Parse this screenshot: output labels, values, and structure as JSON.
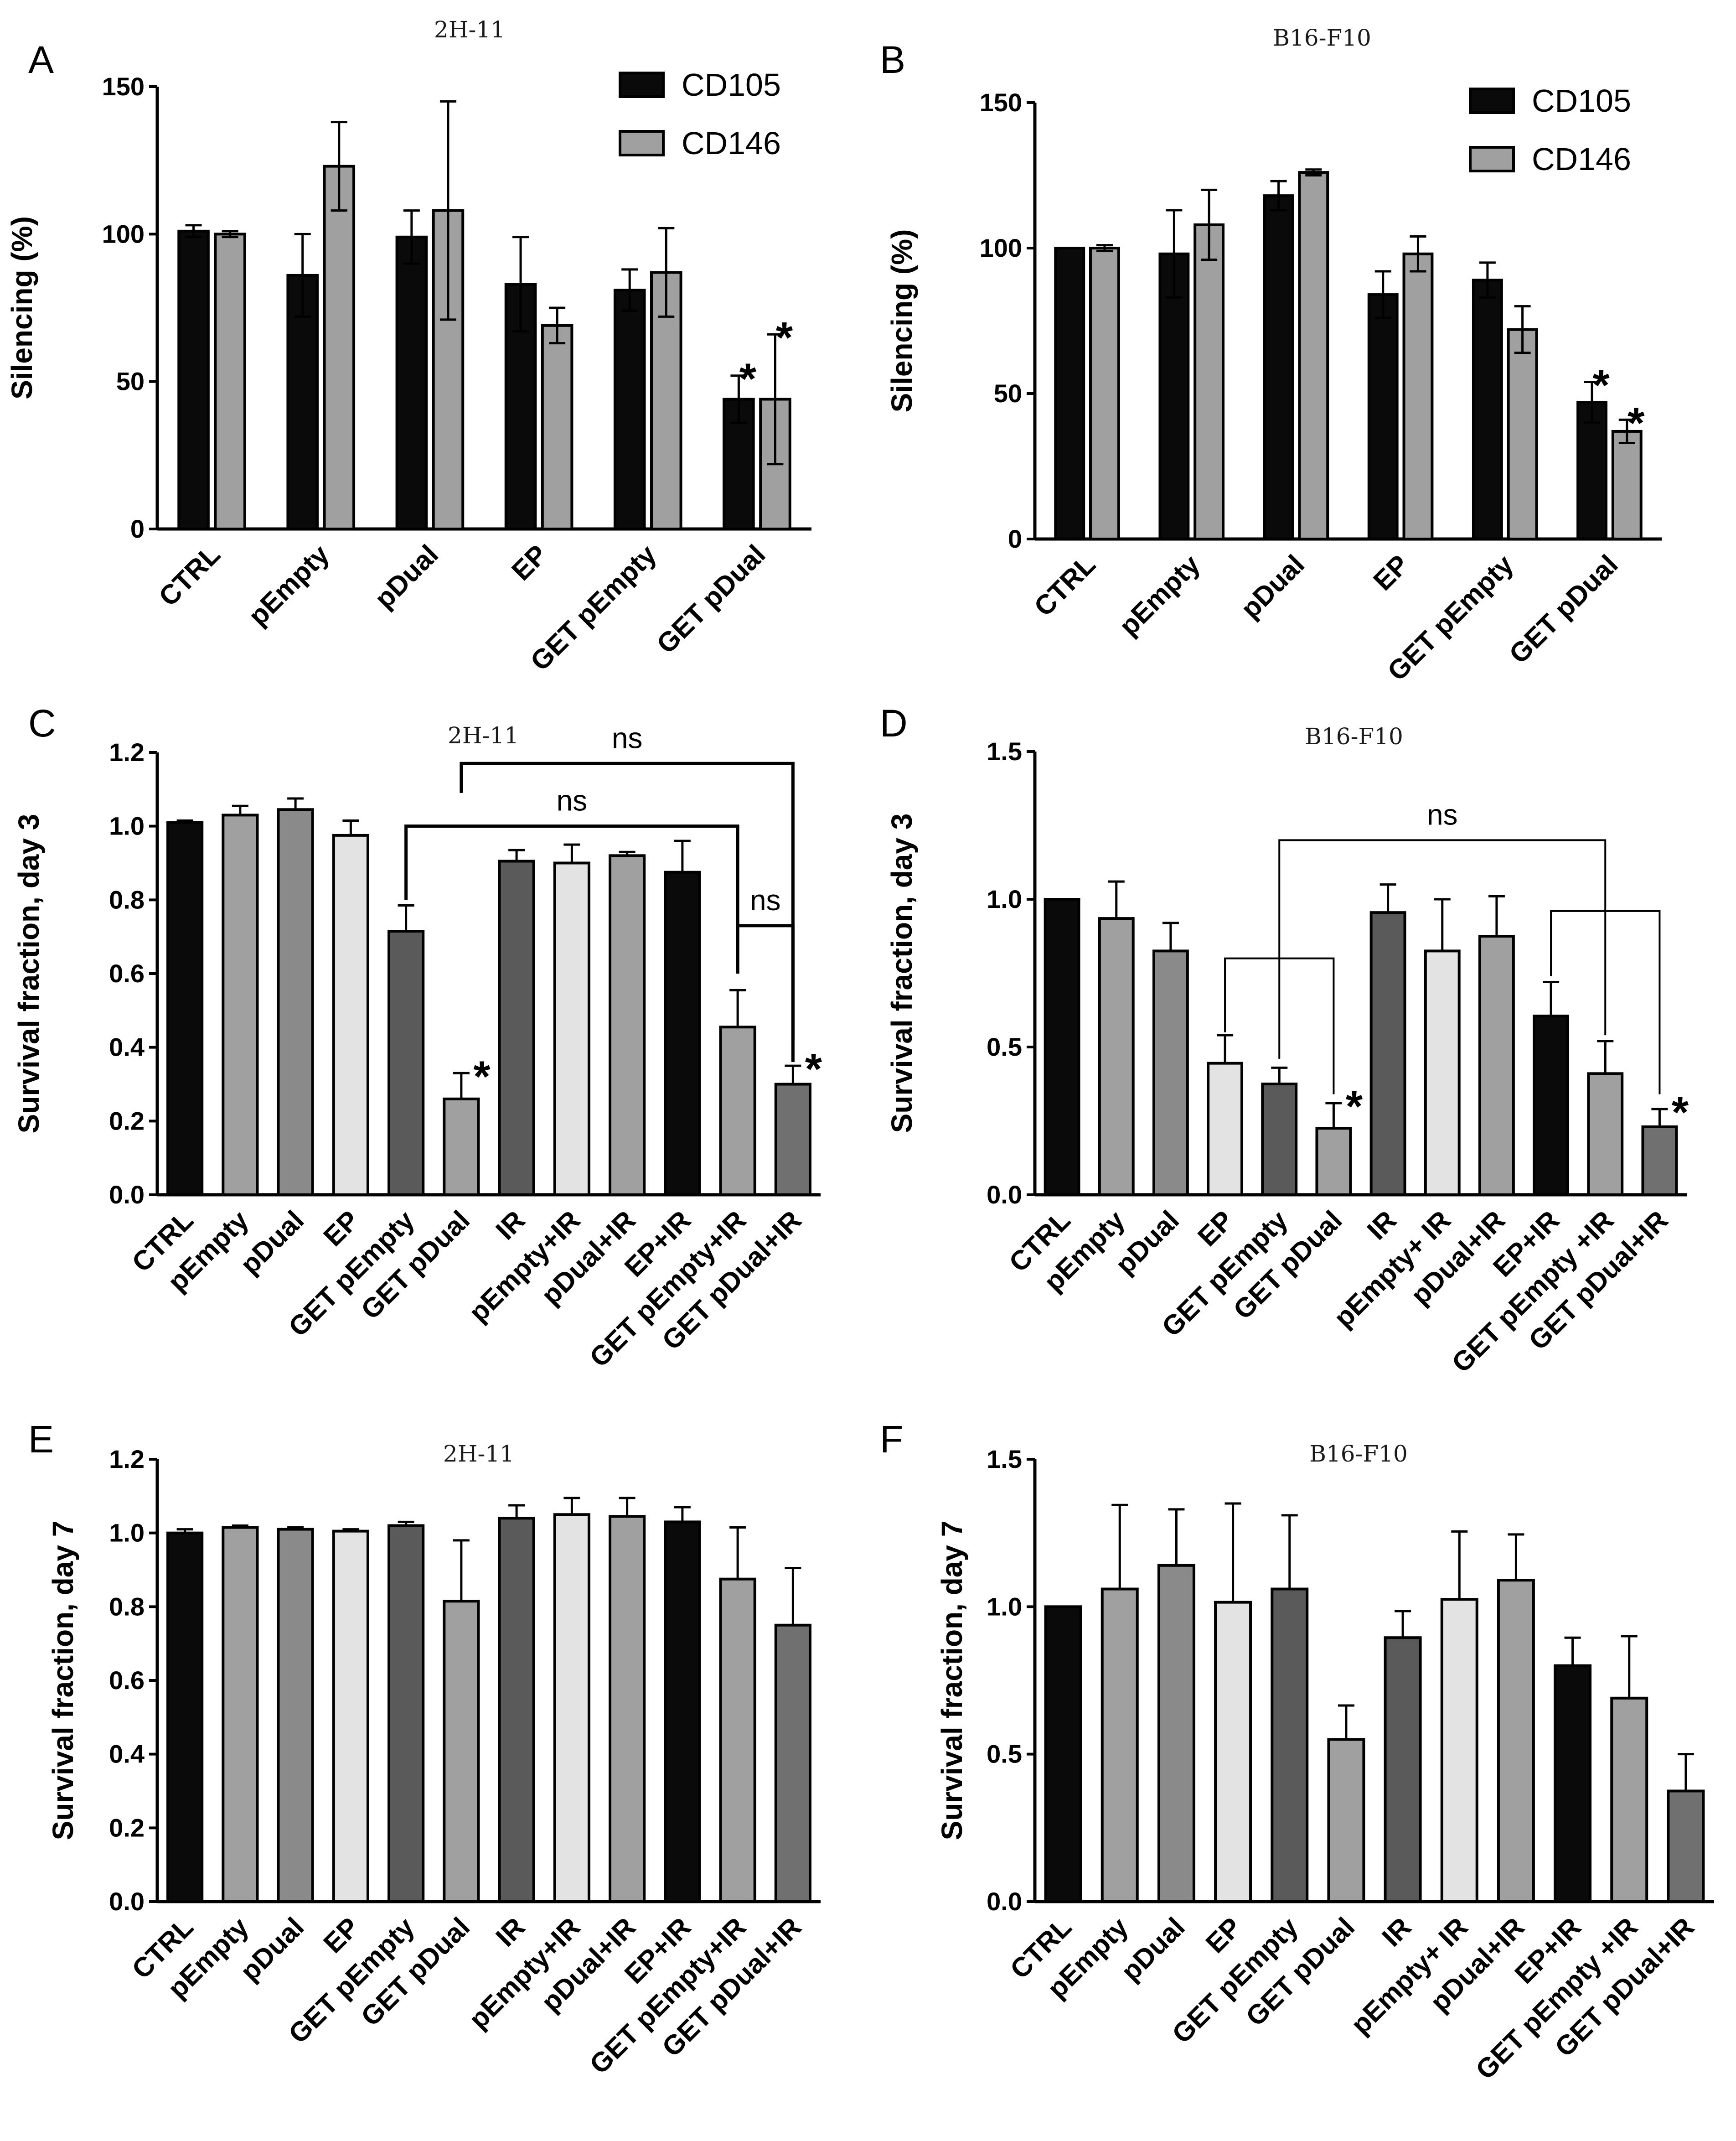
{
  "chart_data": [
    {
      "panel": "A",
      "title": "2H-11",
      "type": "bar",
      "categories": [
        "CTRL",
        "pEmpty",
        "pDual",
        "EP",
        "GET pEmpty",
        "GET pDual"
      ],
      "series": [
        {
          "name": "CD105",
          "color": "#0a0a0a",
          "values": [
            101,
            86,
            99,
            83,
            81,
            44
          ],
          "errors": [
            2,
            14,
            9,
            16,
            7,
            8
          ]
        },
        {
          "name": "CD146",
          "color": "#a0a0a0",
          "values": [
            100,
            123,
            108,
            69,
            87,
            44
          ],
          "errors": [
            1,
            15,
            37,
            6,
            15,
            22
          ]
        }
      ],
      "stars": [
        {
          "category": 5,
          "series": 0,
          "label": "*"
        },
        {
          "category": 5,
          "series": 1,
          "label": "*"
        }
      ],
      "ylabel": "Silencing (%)",
      "ylim": [
        0,
        150
      ],
      "yticks": [
        "0",
        "50",
        "100",
        "150"
      ]
    },
    {
      "panel": "B",
      "title": "B16-F10",
      "type": "bar",
      "categories": [
        "CTRL",
        "pEmpty",
        "pDual",
        "EP",
        "GET pEmpty",
        "GET pDual"
      ],
      "series": [
        {
          "name": "CD105",
          "color": "#0a0a0a",
          "values": [
            100,
            98,
            118,
            84,
            89,
            47
          ],
          "errors": [
            0,
            15,
            5,
            8,
            6,
            7
          ]
        },
        {
          "name": "CD146",
          "color": "#a0a0a0",
          "values": [
            100,
            108,
            126,
            98,
            72,
            37
          ],
          "errors": [
            1,
            12,
            1,
            6,
            8,
            4
          ]
        }
      ],
      "stars": [
        {
          "category": 5,
          "series": 0,
          "label": "*"
        },
        {
          "category": 5,
          "series": 1,
          "label": "*"
        }
      ],
      "ylabel": "Silencing (%)",
      "ylim": [
        0,
        150
      ],
      "yticks": [
        "0",
        "50",
        "100",
        "150"
      ]
    },
    {
      "panel": "C",
      "title": "2H-11",
      "type": "bar",
      "categories": [
        "CTRL",
        "pEmpty",
        "pDual",
        "EP",
        "GET pEmpty",
        "GET pDual",
        "IR",
        "pEmpty+IR",
        "pDual+IR",
        "EP+IR",
        "GET pEmpty+IR",
        "GET pDual+IR"
      ],
      "values": [
        1.01,
        1.03,
        1.045,
        0.975,
        0.715,
        0.26,
        0.905,
        0.9,
        0.92,
        0.875,
        0.455,
        0.3
      ],
      "errors": [
        0.005,
        0.025,
        0.03,
        0.04,
        0.07,
        0.07,
        0.03,
        0.05,
        0.01,
        0.085,
        0.1,
        0.05
      ],
      "colors": [
        "#0a0a0a",
        "#a0a0a0",
        "#8a8a8a",
        "#e3e3e3",
        "#5a5a5a",
        "#a0a0a0",
        "#5a5a5a",
        "#e3e3e3",
        "#a0a0a0",
        "#0a0a0a",
        "#a0a0a0",
        "#707070"
      ],
      "stars": [
        {
          "category": 5,
          "label": "*"
        },
        {
          "category": 11,
          "label": "*"
        }
      ],
      "brackets": [
        {
          "from": 5,
          "to": 11,
          "level": 1.17,
          "drop_left": 1.09,
          "drop_right": 0.42,
          "label": "ns"
        },
        {
          "from": 4,
          "to": 10,
          "level": 1.0,
          "drop_left": 0.8,
          "drop_right": 0.6,
          "label": "ns"
        },
        {
          "from": 10,
          "to": 11,
          "level": 0.73,
          "drop_left": 0.6,
          "drop_right": 0.36,
          "label": "ns"
        }
      ],
      "ylabel": "Survival fraction, day 3",
      "ylim": [
        0,
        1.2
      ],
      "yticks": [
        "0.0",
        "0.2",
        "0.4",
        "0.6",
        "0.8",
        "1.0",
        "1.2"
      ]
    },
    {
      "panel": "D",
      "title": "B16-F10",
      "type": "bar",
      "categories": [
        "CTRL",
        "pEmpty",
        "pDual",
        "EP",
        "GET pEmpty",
        "GET pDual",
        "IR",
        "pEmpty+ IR",
        "pDual+IR",
        "EP+IR",
        "GET pEmpty +IR",
        "GET pDual+IR"
      ],
      "values": [
        1.0,
        0.935,
        0.825,
        0.445,
        0.375,
        0.225,
        0.955,
        0.825,
        0.875,
        0.605,
        0.41,
        0.23
      ],
      "errors": [
        0,
        0.125,
        0.095,
        0.095,
        0.055,
        0.085,
        0.095,
        0.175,
        0.135,
        0.115,
        0.11,
        0.06
      ],
      "colors": [
        "#0a0a0a",
        "#a0a0a0",
        "#8a8a8a",
        "#e3e3e3",
        "#5a5a5a",
        "#a0a0a0",
        "#5a5a5a",
        "#e3e3e3",
        "#a0a0a0",
        "#0a0a0a",
        "#a0a0a0",
        "#707070"
      ],
      "stars": [
        {
          "category": 5,
          "label": "*"
        },
        {
          "category": 11,
          "label": "*"
        }
      ],
      "brackets": [
        {
          "from": 4,
          "to": 10,
          "level": 1.2,
          "drop_left": 0.46,
          "drop_right": 0.54,
          "label": "ns"
        },
        {
          "from": 3,
          "to": 5,
          "level": 0.8,
          "drop_left": 0.55,
          "drop_right": 0.34,
          "label": ""
        },
        {
          "from": 9,
          "to": 11,
          "level": 0.96,
          "drop_left": 0.74,
          "drop_right": 0.34,
          "label": ""
        }
      ],
      "ylabel": "Survival fraction, day 3",
      "ylim": [
        0,
        1.5
      ],
      "yticks": [
        "0.0",
        "0.5",
        "1.0",
        "1.5"
      ]
    },
    {
      "panel": "E",
      "title": "2H-11",
      "type": "bar",
      "categories": [
        "CTRL",
        "pEmpty",
        "pDual",
        "EP",
        "GET pEmpty",
        "GET pDual",
        "IR",
        "pEmpty+IR",
        "pDual+IR",
        "EP+IR",
        "GET pEmpty+IR",
        "GET pDual+IR"
      ],
      "values": [
        1.0,
        1.015,
        1.01,
        1.005,
        1.02,
        0.815,
        1.04,
        1.05,
        1.045,
        1.03,
        0.875,
        0.75
      ],
      "errors": [
        0.01,
        0.005,
        0.005,
        0.005,
        0.01,
        0.165,
        0.035,
        0.045,
        0.05,
        0.04,
        0.14,
        0.155
      ],
      "colors": [
        "#0a0a0a",
        "#a0a0a0",
        "#8a8a8a",
        "#e3e3e3",
        "#5a5a5a",
        "#a0a0a0",
        "#5a5a5a",
        "#e3e3e3",
        "#a0a0a0",
        "#0a0a0a",
        "#a0a0a0",
        "#707070"
      ],
      "stars": [],
      "brackets": [],
      "ylabel": "Survival fraction, day 7",
      "ylim": [
        0,
        1.2
      ],
      "yticks": [
        "0.0",
        "0.2",
        "0.4",
        "0.6",
        "0.8",
        "1.0",
        "1.2"
      ]
    },
    {
      "panel": "F",
      "title": "B16-F10",
      "type": "bar",
      "categories": [
        "CTRL",
        "pEmpty",
        "pDual",
        "EP",
        "GET pEmpty",
        "GET pDual",
        "IR",
        "pEmpty+ IR",
        "pDual+IR",
        "EP+IR",
        "GET pEmpty +IR",
        "GET pDual+IR"
      ],
      "values": [
        1.0,
        1.06,
        1.14,
        1.015,
        1.06,
        0.55,
        0.895,
        1.025,
        1.09,
        0.8,
        0.69,
        0.375
      ],
      "errors": [
        0,
        0.285,
        0.19,
        0.335,
        0.25,
        0.115,
        0.09,
        0.23,
        0.155,
        0.095,
        0.21,
        0.125
      ],
      "colors": [
        "#0a0a0a",
        "#a0a0a0",
        "#8a8a8a",
        "#e3e3e3",
        "#5a5a5a",
        "#a0a0a0",
        "#5a5a5a",
        "#e3e3e3",
        "#a0a0a0",
        "#0a0a0a",
        "#a0a0a0",
        "#707070"
      ],
      "stars": [],
      "brackets": [],
      "ylabel": "Survival fraction, day 7",
      "ylim": [
        0,
        1.5
      ],
      "yticks": [
        "0.0",
        "0.5",
        "1.0",
        "1.5"
      ]
    }
  ]
}
